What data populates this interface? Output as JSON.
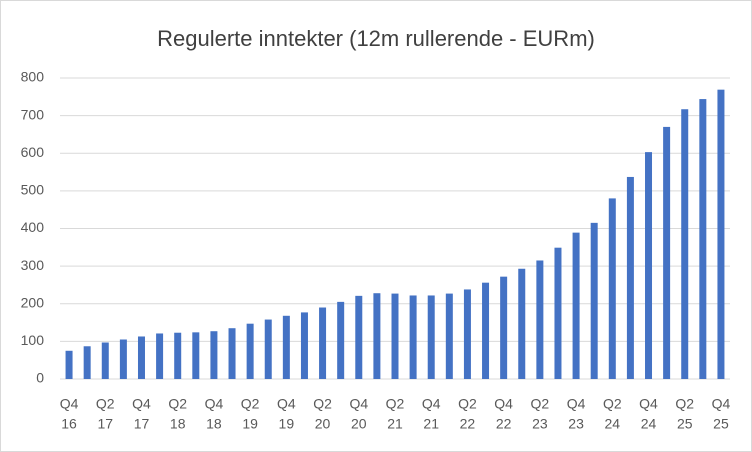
{
  "chart_data": {
    "type": "bar",
    "title": "Regulerte inntekter (12m rullerende - EURm)",
    "categories": [
      [
        "Q4",
        "16"
      ],
      null,
      [
        "Q2",
        "17"
      ],
      null,
      [
        "Q4",
        "17"
      ],
      null,
      [
        "Q2",
        "18"
      ],
      null,
      [
        "Q4",
        "18"
      ],
      null,
      [
        "Q2",
        "19"
      ],
      null,
      [
        "Q4",
        "19"
      ],
      null,
      [
        "Q2",
        "20"
      ],
      null,
      [
        "Q4",
        "20"
      ],
      null,
      [
        "Q2",
        "21"
      ],
      null,
      [
        "Q4",
        "21"
      ],
      null,
      [
        "Q2",
        "22"
      ],
      null,
      [
        "Q4",
        "22"
      ],
      null,
      [
        "Q2",
        "23"
      ],
      null,
      [
        "Q4",
        "23"
      ],
      null,
      [
        "Q2",
        "24"
      ],
      null,
      [
        "Q4",
        "24"
      ],
      null,
      [
        "Q2",
        "25"
      ],
      null,
      [
        "Q4",
        "25"
      ]
    ],
    "values": [
      75,
      87,
      97,
      105,
      113,
      121,
      123,
      124,
      127,
      135,
      147,
      158,
      168,
      177,
      190,
      205,
      221,
      228,
      227,
      222,
      222,
      227,
      238,
      256,
      272,
      293,
      315,
      349,
      389,
      415,
      480,
      537,
      603,
      670,
      717,
      744,
      769
    ],
    "color": "#4472c4",
    "ylim": [
      0,
      800
    ],
    "yticks": [
      0,
      100,
      200,
      300,
      400,
      500,
      600,
      700,
      800
    ],
    "grid": true
  }
}
